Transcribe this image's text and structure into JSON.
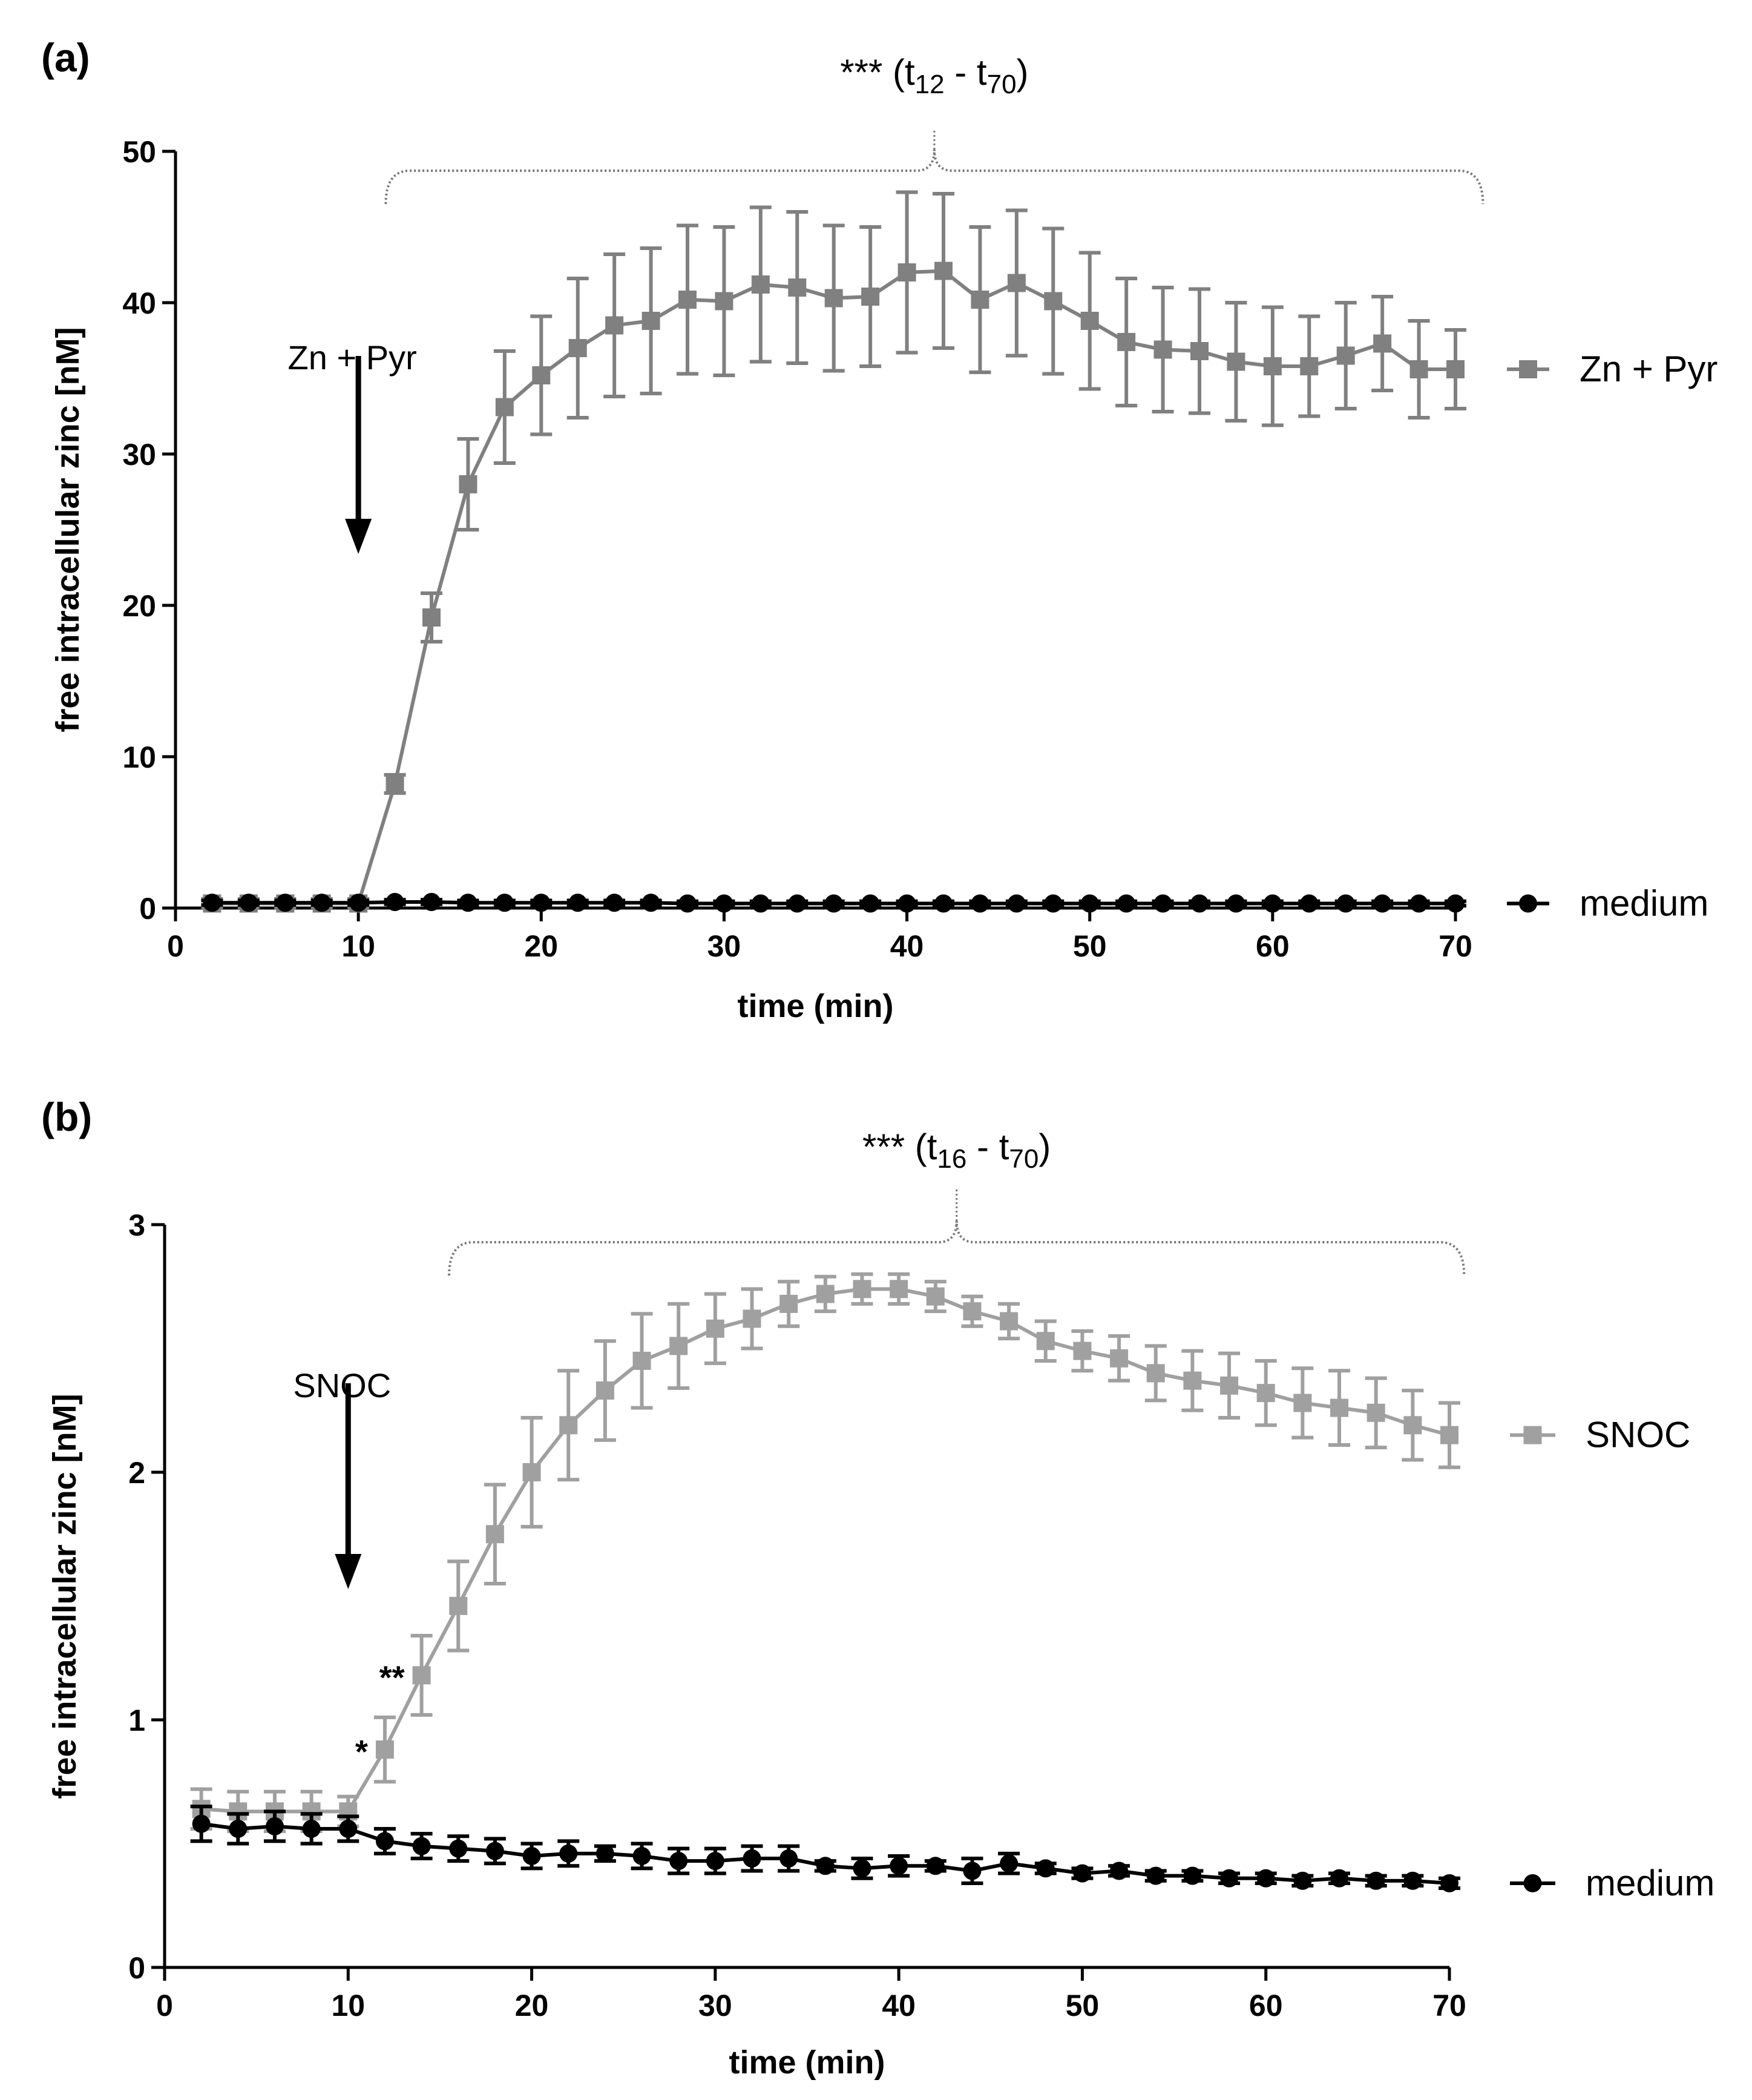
{
  "chart_data": [
    {
      "type": "line",
      "panel_label": "(a)",
      "xlabel": "time (min)",
      "ylabel": "free intracellular zinc [nM]",
      "xlim": [
        0,
        70
      ],
      "ylim": [
        0,
        50
      ],
      "xticks": [
        0,
        10,
        20,
        30,
        40,
        50,
        60,
        70
      ],
      "yticks": [
        0,
        10,
        20,
        30,
        40,
        50
      ],
      "annotation": {
        "label": "Zn + Pyr",
        "at_x": 10
      },
      "significance": {
        "stars": "***",
        "open": " (t",
        "sub1": "12",
        "mid": " - t",
        "sub2": "70",
        "close": ")",
        "from_x": 11.5,
        "to_x": 71.5
      },
      "series": [
        {
          "name": "Zn + Pyr",
          "color": "#808080",
          "marker": "square",
          "x": [
            2,
            4,
            6,
            8,
            10,
            12,
            14,
            16,
            18,
            20,
            22,
            24,
            26,
            28,
            30,
            32,
            34,
            36,
            38,
            40,
            42,
            44,
            46,
            48,
            50,
            52,
            54,
            56,
            58,
            60,
            62,
            64,
            66,
            68,
            70
          ],
          "y": [
            0.3,
            0.3,
            0.3,
            0.3,
            0.3,
            8.2,
            19.2,
            28,
            33.1,
            35.2,
            37,
            38.5,
            38.8,
            40.2,
            40.1,
            41.2,
            41,
            40.3,
            40.4,
            42,
            42.1,
            40.2,
            41.3,
            40.1,
            38.8,
            37.4,
            36.9,
            36.8,
            36.1,
            35.8,
            35.8,
            36.5,
            37.3,
            35.6,
            35.6
          ],
          "err": [
            0.3,
            0.3,
            0.3,
            0.3,
            0.3,
            0.6,
            1.6,
            3,
            3.7,
            3.9,
            4.6,
            4.7,
            4.8,
            4.9,
            4.9,
            5.1,
            5,
            4.8,
            4.6,
            5.3,
            5.1,
            4.8,
            4.8,
            4.8,
            4.5,
            4.2,
            4.1,
            4.1,
            3.9,
            3.9,
            3.3,
            3.5,
            3.1,
            3.2,
            2.6
          ]
        },
        {
          "name": "medium",
          "color": "#000000",
          "marker": "circle",
          "x": [
            2,
            4,
            6,
            8,
            10,
            12,
            14,
            16,
            18,
            20,
            22,
            24,
            26,
            28,
            30,
            32,
            34,
            36,
            38,
            40,
            42,
            44,
            46,
            48,
            50,
            52,
            54,
            56,
            58,
            60,
            62,
            64,
            66,
            68,
            70
          ],
          "y": [
            0.35,
            0.35,
            0.35,
            0.35,
            0.35,
            0.4,
            0.4,
            0.35,
            0.35,
            0.35,
            0.35,
            0.35,
            0.35,
            0.3,
            0.3,
            0.3,
            0.3,
            0.3,
            0.3,
            0.3,
            0.3,
            0.3,
            0.3,
            0.3,
            0.3,
            0.3,
            0.3,
            0.3,
            0.3,
            0.3,
            0.3,
            0.3,
            0.3,
            0.3,
            0.3
          ],
          "err": [
            0.15,
            0.15,
            0.15,
            0.15,
            0.15,
            0.15,
            0.15,
            0.15,
            0.15,
            0.15,
            0.15,
            0.15,
            0.15,
            0.15,
            0.15,
            0.15,
            0.15,
            0.15,
            0.15,
            0.15,
            0.15,
            0.15,
            0.15,
            0.15,
            0.15,
            0.15,
            0.15,
            0.15,
            0.15,
            0.15,
            0.15,
            0.15,
            0.15,
            0.15,
            0.15
          ]
        }
      ]
    },
    {
      "type": "line",
      "panel_label": "(b)",
      "xlabel": "time (min)",
      "ylabel": "free intracellular zinc [nM]",
      "xlim": [
        0,
        70
      ],
      "ylim": [
        0,
        3
      ],
      "xticks": [
        0,
        10,
        20,
        30,
        40,
        50,
        60,
        70
      ],
      "yticks": [
        0,
        1,
        2,
        3
      ],
      "annotation": {
        "label": "SNOC",
        "at_x": 10
      },
      "significance": {
        "stars": "***",
        "open": " (t",
        "sub1": "16",
        "mid": " - t",
        "sub2": "70",
        "close": ")",
        "from_x": 15.5,
        "to_x": 70.8
      },
      "point_stars": [
        {
          "label": "*",
          "x": 12,
          "y": 0.88
        },
        {
          "label": "**",
          "x": 14,
          "y": 1.18
        }
      ],
      "series": [
        {
          "name": "SNOC",
          "color": "#a0a0a0",
          "marker": "square",
          "x": [
            2,
            4,
            6,
            8,
            10,
            12,
            14,
            16,
            18,
            20,
            22,
            24,
            26,
            28,
            30,
            32,
            34,
            36,
            38,
            40,
            42,
            44,
            46,
            48,
            50,
            52,
            54,
            56,
            58,
            60,
            62,
            64,
            66,
            68,
            70
          ],
          "y": [
            0.64,
            0.63,
            0.63,
            0.63,
            0.63,
            0.88,
            1.18,
            1.46,
            1.75,
            2.0,
            2.19,
            2.33,
            2.45,
            2.51,
            2.58,
            2.62,
            2.68,
            2.72,
            2.74,
            2.74,
            2.71,
            2.65,
            2.61,
            2.53,
            2.49,
            2.46,
            2.4,
            2.37,
            2.35,
            2.32,
            2.28,
            2.26,
            2.24,
            2.19,
            2.15
          ],
          "err": [
            0.08,
            0.08,
            0.08,
            0.08,
            0.06,
            0.13,
            0.16,
            0.18,
            0.2,
            0.22,
            0.22,
            0.2,
            0.19,
            0.17,
            0.14,
            0.12,
            0.09,
            0.07,
            0.06,
            0.06,
            0.06,
            0.06,
            0.07,
            0.08,
            0.08,
            0.09,
            0.11,
            0.12,
            0.13,
            0.13,
            0.14,
            0.15,
            0.14,
            0.14,
            0.13
          ]
        },
        {
          "name": "medium",
          "color": "#000000",
          "marker": "circle",
          "x": [
            2,
            4,
            6,
            8,
            10,
            12,
            14,
            16,
            18,
            20,
            22,
            24,
            26,
            28,
            30,
            32,
            34,
            36,
            38,
            40,
            42,
            44,
            46,
            48,
            50,
            52,
            54,
            56,
            58,
            60,
            62,
            64,
            66,
            68,
            70
          ],
          "y": [
            0.58,
            0.56,
            0.57,
            0.56,
            0.56,
            0.51,
            0.49,
            0.48,
            0.47,
            0.45,
            0.46,
            0.46,
            0.45,
            0.43,
            0.43,
            0.44,
            0.44,
            0.41,
            0.4,
            0.41,
            0.41,
            0.39,
            0.42,
            0.4,
            0.38,
            0.39,
            0.37,
            0.37,
            0.36,
            0.36,
            0.35,
            0.36,
            0.35,
            0.35,
            0.34
          ],
          "err": [
            0.07,
            0.06,
            0.06,
            0.06,
            0.05,
            0.05,
            0.05,
            0.05,
            0.05,
            0.05,
            0.05,
            0.03,
            0.05,
            0.05,
            0.05,
            0.05,
            0.05,
            0.02,
            0.04,
            0.04,
            0.02,
            0.05,
            0.04,
            0.02,
            0.02,
            0.02,
            0.02,
            0.02,
            0.02,
            0.02,
            0.02,
            0.02,
            0.02,
            0.02,
            0.02
          ]
        }
      ]
    }
  ]
}
